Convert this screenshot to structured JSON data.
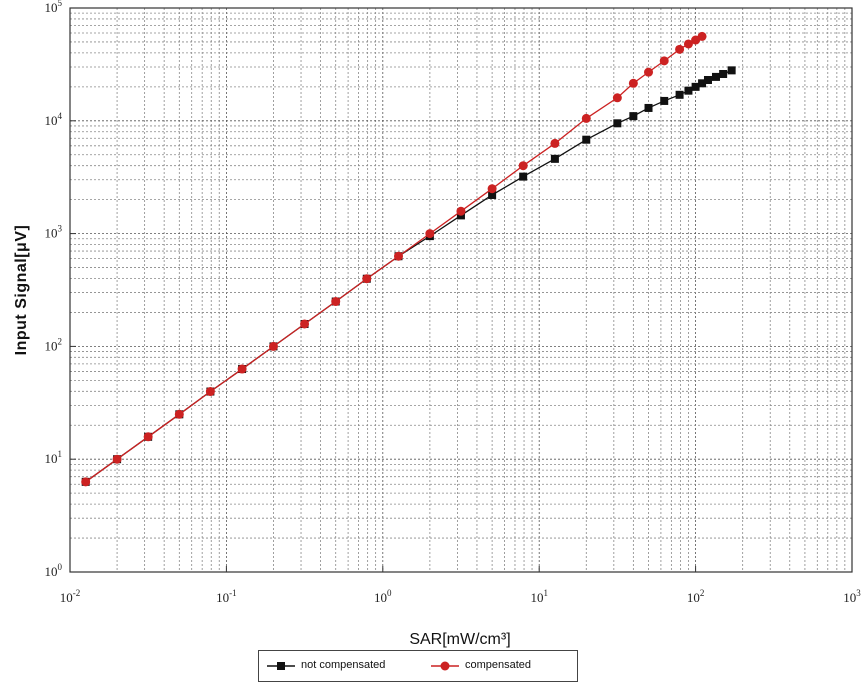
{
  "chart_data": {
    "type": "line",
    "xlabel": "SAR[mW/cm³]",
    "ylabel": "Input Signal[μV]",
    "xscale": "log",
    "yscale": "log",
    "xlim": [
      0.01,
      1000
    ],
    "ylim": [
      1,
      100000
    ],
    "grid": true,
    "legend_position": "bottom",
    "x_ticks": [
      {
        "base": "10",
        "exp": "-2"
      },
      {
        "base": "10",
        "exp": "-1"
      },
      {
        "base": "10",
        "exp": "0"
      },
      {
        "base": "10",
        "exp": "1"
      },
      {
        "base": "10",
        "exp": "2"
      },
      {
        "base": "10",
        "exp": "3"
      }
    ],
    "y_ticks": [
      {
        "base": "10",
        "exp": "1"
      },
      {
        "base": "10",
        "exp": "2"
      },
      {
        "base": "10",
        "exp": "3"
      },
      {
        "base": "10",
        "exp": "4"
      },
      {
        "base": "10",
        "exp": "5"
      }
    ],
    "series": [
      {
        "name": "not compensated",
        "color": "#111111",
        "marker": "square",
        "points": [
          [
            0.0126,
            6.3
          ],
          [
            0.02,
            10
          ],
          [
            0.0316,
            15.8
          ],
          [
            0.05,
            25
          ],
          [
            0.079,
            39.8
          ],
          [
            0.126,
            63
          ],
          [
            0.2,
            100
          ],
          [
            0.316,
            158
          ],
          [
            0.5,
            250
          ],
          [
            0.79,
            398
          ],
          [
            1.26,
            630
          ],
          [
            2.0,
            950
          ],
          [
            3.16,
            1450
          ],
          [
            5.0,
            2200
          ],
          [
            7.9,
            3200
          ],
          [
            12.6,
            4600
          ],
          [
            20.0,
            6800
          ],
          [
            31.6,
            9500
          ],
          [
            40,
            11000
          ],
          [
            50,
            13000
          ],
          [
            63,
            15000
          ],
          [
            79,
            17000
          ],
          [
            90,
            18500
          ],
          [
            100,
            20000
          ],
          [
            110,
            21500
          ],
          [
            120,
            23000
          ],
          [
            135,
            24500
          ],
          [
            150,
            26000
          ],
          [
            170,
            28000
          ]
        ]
      },
      {
        "name": "compensated",
        "color": "#cc2222",
        "marker": "circle",
        "points": [
          [
            0.0126,
            6.3
          ],
          [
            0.02,
            10
          ],
          [
            0.0316,
            15.8
          ],
          [
            0.05,
            25
          ],
          [
            0.079,
            39.8
          ],
          [
            0.126,
            63
          ],
          [
            0.2,
            100
          ],
          [
            0.316,
            158
          ],
          [
            0.5,
            250
          ],
          [
            0.79,
            398
          ],
          [
            1.26,
            630
          ],
          [
            2.0,
            1000
          ],
          [
            3.16,
            1580
          ],
          [
            5.0,
            2500
          ],
          [
            7.9,
            4000
          ],
          [
            12.6,
            6300
          ],
          [
            20.0,
            10500
          ],
          [
            31.6,
            16000
          ],
          [
            40,
            21500
          ],
          [
            50,
            27000
          ],
          [
            63,
            34000
          ],
          [
            79,
            43000
          ],
          [
            90,
            48000
          ],
          [
            100,
            52000
          ],
          [
            110,
            56000
          ]
        ]
      }
    ]
  },
  "legend": {
    "items": [
      {
        "label": "not compensated"
      },
      {
        "label": "compensated"
      }
    ]
  }
}
